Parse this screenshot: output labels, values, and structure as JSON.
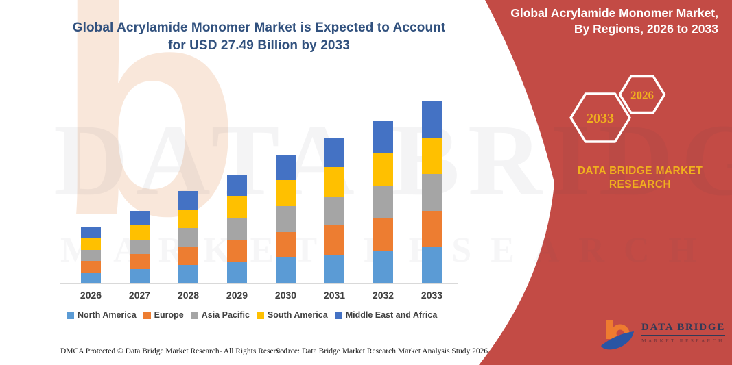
{
  "left_panel": {
    "title_line1": "Global Acrylamide Monomer Market is Expected to Account",
    "title_line2": "for USD 27.49 Billion by 2033"
  },
  "chart_data": {
    "type": "bar",
    "subtype": "stacked",
    "title": "Global Acrylamide Monomer Market is Expected to Account for USD 27.49 Billion by 2033",
    "unit": "USD Billion",
    "categories": [
      "2026",
      "2027",
      "2028",
      "2029",
      "2030",
      "2031",
      "2032",
      "2033"
    ],
    "series": [
      {
        "name": "North America",
        "color": "#5b9bd5",
        "values": [
          1.7,
          2.2,
          2.8,
          3.3,
          3.9,
          4.4,
          4.9,
          5.5
        ]
      },
      {
        "name": "Europe",
        "color": "#ed7d31",
        "values": [
          1.7,
          2.2,
          2.8,
          3.3,
          3.9,
          4.4,
          4.9,
          5.5
        ]
      },
      {
        "name": "Asia Pacific",
        "color": "#a5a5a5",
        "values": [
          1.7,
          2.2,
          2.8,
          3.3,
          3.9,
          4.4,
          4.9,
          5.5
        ]
      },
      {
        "name": "South America",
        "color": "#ffc000",
        "values": [
          1.7,
          2.2,
          2.8,
          3.3,
          3.9,
          4.4,
          4.9,
          5.5
        ]
      },
      {
        "name": "Middle East and Africa",
        "color": "#4472c4",
        "values": [
          1.7,
          2.2,
          2.8,
          3.3,
          3.9,
          4.4,
          4.9,
          5.5
        ]
      }
    ],
    "totals": [
      8.5,
      11.0,
      14.0,
      16.5,
      19.5,
      22.0,
      24.5,
      27.49
    ],
    "legend_position": "bottom",
    "gridlines": false,
    "value_axis_visible": false
  },
  "footer": {
    "dmca": "DMCA Protected © Data Bridge Market Research-  All Rights Reserved.",
    "source": "Source: Data Bridge Market Research  Market Analysis Study 2026"
  },
  "right_panel": {
    "heading_line1": "Global Acrylamide Monomer Market,",
    "heading_line2": "By Regions, 2026 to 2033",
    "hexagon_large_year": "2033",
    "hexagon_small_year": "2026",
    "brand_line1": "DATA BRIDGE MARKET",
    "brand_line2": "RESEARCH",
    "logo_name": "DATA BRIDGE",
    "logo_subtitle": "MARKET RESEARCH"
  },
  "watermark": {
    "letter": "b",
    "line1": "DATA BRIDGE",
    "line2": "MARKET RESEARCH"
  },
  "colors": {
    "panel_red": "#c34b45",
    "accent_yellow": "#f0b01e",
    "title_navy": "#31517e",
    "logo_orange": "#ee7b30",
    "logo_blue": "#2a55a4"
  }
}
